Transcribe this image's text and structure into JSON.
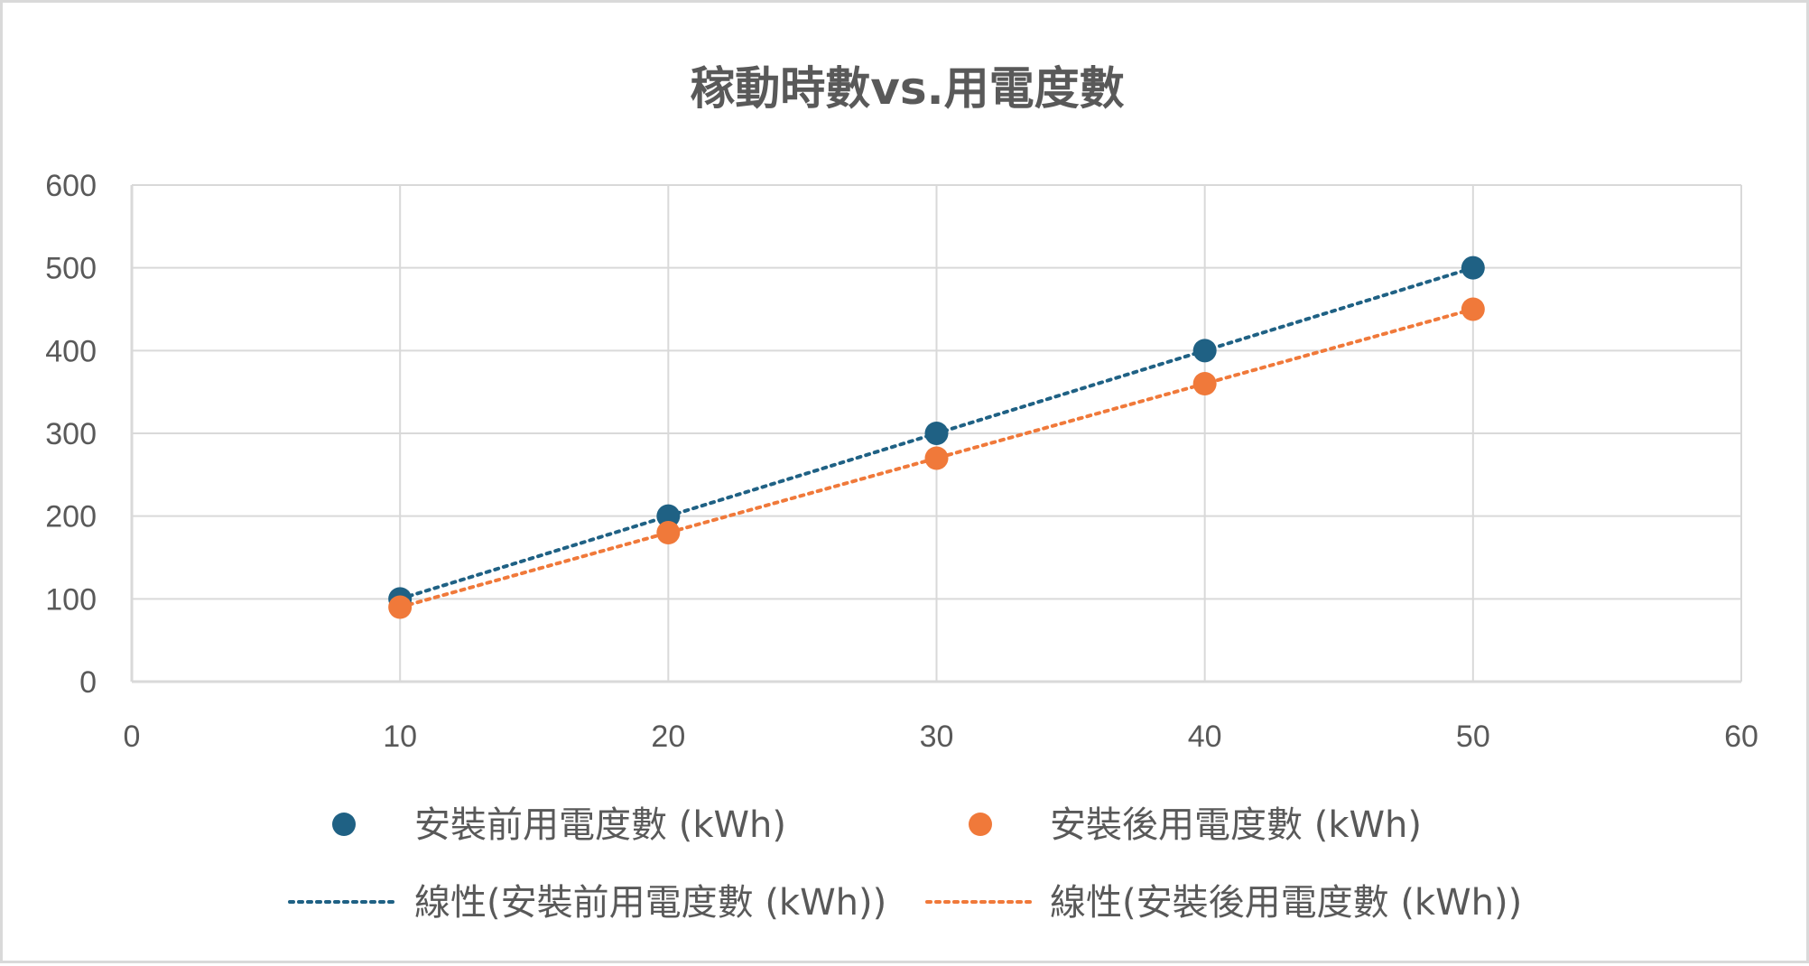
{
  "chart_data": {
    "type": "scatter",
    "title": "稼動時數vs.用電度數",
    "xlabel": "",
    "ylabel": "",
    "xlim": [
      0,
      60
    ],
    "ylim": [
      0,
      600
    ],
    "x_ticks": [
      0,
      10,
      20,
      30,
      40,
      50,
      60
    ],
    "y_ticks": [
      0,
      100,
      200,
      300,
      400,
      500,
      600
    ],
    "grid": true,
    "legend_position": "bottom",
    "series": [
      {
        "name": "安裝前用電度數 (kWh)",
        "color": "#1f6184",
        "x": [
          10,
          20,
          30,
          40,
          50
        ],
        "y": [
          100,
          200,
          300,
          400,
          500
        ],
        "trendline": {
          "type": "linear",
          "name": "線性(安裝前用電度數 (kWh))"
        }
      },
      {
        "name": "安裝後用電度數 (kWh)",
        "color": "#f0793a",
        "x": [
          10,
          20,
          30,
          40,
          50
        ],
        "y": [
          90,
          180,
          270,
          360,
          450
        ],
        "trendline": {
          "type": "linear",
          "name": "線性(安裝後用電度數 (kWh))"
        }
      }
    ]
  }
}
